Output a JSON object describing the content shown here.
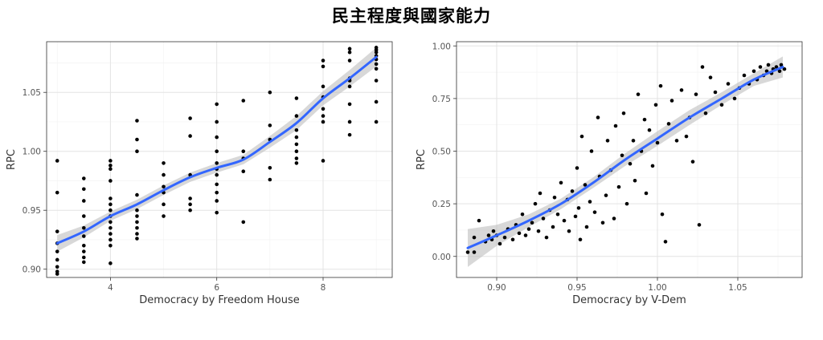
{
  "page": {
    "title": "民主程度與國家能力"
  },
  "colors": {
    "smooth_line": "#3366FF",
    "ribbon": "#BEBEBE",
    "points": "#000000",
    "grid_major": "#E3E3E3",
    "grid_minor": "#F2F2F2",
    "border": "#333333"
  },
  "chart_data": [
    {
      "type": "scatter",
      "title": "",
      "xlabel": "Democracy by Freedom House",
      "ylabel": "RPC",
      "xlim": [
        2.8,
        9.3
      ],
      "ylim": [
        0.893,
        1.093
      ],
      "xticks": [
        4,
        6,
        8
      ],
      "yticks": [
        0.9,
        0.95,
        1.0,
        1.05
      ],
      "grid": true,
      "series": [
        {
          "points": [
            [
              3,
              0.992
            ],
            [
              3,
              0.965
            ],
            [
              3,
              0.932
            ],
            [
              3,
              0.922
            ],
            [
              3,
              0.915
            ],
            [
              3,
              0.908
            ],
            [
              3,
              0.902
            ],
            [
              3,
              0.898
            ],
            [
              3,
              0.896
            ],
            [
              3.5,
              0.977
            ],
            [
              3.5,
              0.968
            ],
            [
              3.5,
              0.958
            ],
            [
              3.5,
              0.945
            ],
            [
              3.5,
              0.935
            ],
            [
              3.5,
              0.928
            ],
            [
              3.5,
              0.92
            ],
            [
              3.5,
              0.915
            ],
            [
              3.5,
              0.91
            ],
            [
              3.5,
              0.906
            ],
            [
              4,
              0.992
            ],
            [
              4,
              0.988
            ],
            [
              4,
              0.985
            ],
            [
              4,
              0.975
            ],
            [
              4,
              0.96
            ],
            [
              4,
              0.955
            ],
            [
              4,
              0.95
            ],
            [
              4,
              0.945
            ],
            [
              4,
              0.94
            ],
            [
              4,
              0.935
            ],
            [
              4,
              0.93
            ],
            [
              4,
              0.925
            ],
            [
              4,
              0.92
            ],
            [
              4,
              0.905
            ],
            [
              4.5,
              1.026
            ],
            [
              4.5,
              1.01
            ],
            [
              4.5,
              1.0
            ],
            [
              4.5,
              0.963
            ],
            [
              4.5,
              0.95
            ],
            [
              4.5,
              0.945
            ],
            [
              4.5,
              0.94
            ],
            [
              4.5,
              0.935
            ],
            [
              4.5,
              0.93
            ],
            [
              4.5,
              0.926
            ],
            [
              5,
              0.99
            ],
            [
              5,
              0.98
            ],
            [
              5,
              0.97
            ],
            [
              5,
              0.965
            ],
            [
              5,
              0.955
            ],
            [
              5,
              0.945
            ],
            [
              5.5,
              1.028
            ],
            [
              5.5,
              1.013
            ],
            [
              5.5,
              0.98
            ],
            [
              5.5,
              0.96
            ],
            [
              5.5,
              0.955
            ],
            [
              5.5,
              0.95
            ],
            [
              6,
              1.04
            ],
            [
              6,
              1.025
            ],
            [
              6,
              1.012
            ],
            [
              6,
              1.0
            ],
            [
              6,
              0.99
            ],
            [
              6,
              0.985
            ],
            [
              6,
              0.98
            ],
            [
              6,
              0.972
            ],
            [
              6,
              0.965
            ],
            [
              6,
              0.958
            ],
            [
              6,
              0.948
            ],
            [
              6.5,
              1.043
            ],
            [
              6.5,
              1.0
            ],
            [
              6.5,
              0.994
            ],
            [
              6.5,
              0.983
            ],
            [
              6.5,
              0.94
            ],
            [
              7,
              1.05
            ],
            [
              7,
              1.022
            ],
            [
              7,
              1.01
            ],
            [
              7,
              0.986
            ],
            [
              7,
              0.976
            ],
            [
              7.5,
              1.045
            ],
            [
              7.5,
              1.03
            ],
            [
              7.5,
              1.018
            ],
            [
              7.5,
              1.012
            ],
            [
              7.5,
              1.006
            ],
            [
              7.5,
              1.0
            ],
            [
              7.5,
              0.994
            ],
            [
              7.5,
              0.99
            ],
            [
              8,
              1.077
            ],
            [
              8,
              1.072
            ],
            [
              8,
              1.055
            ],
            [
              8,
              1.046
            ],
            [
              8,
              1.036
            ],
            [
              8,
              1.03
            ],
            [
              8,
              1.025
            ],
            [
              8,
              0.992
            ],
            [
              8.5,
              1.087
            ],
            [
              8.5,
              1.084
            ],
            [
              8.5,
              1.077
            ],
            [
              8.5,
              1.062
            ],
            [
              8.5,
              1.06
            ],
            [
              8.5,
              1.055
            ],
            [
              8.5,
              1.04
            ],
            [
              8.5,
              1.025
            ],
            [
              8.5,
              1.014
            ],
            [
              9,
              1.088
            ],
            [
              9,
              1.086
            ],
            [
              9,
              1.084
            ],
            [
              9,
              1.081
            ],
            [
              9,
              1.078
            ],
            [
              9,
              1.074
            ],
            [
              9,
              1.07
            ],
            [
              9,
              1.06
            ],
            [
              9,
              1.042
            ],
            [
              9,
              1.025
            ]
          ],
          "smooth": [
            [
              3,
              0.922
            ],
            [
              3.5,
              0.932
            ],
            [
              4,
              0.945
            ],
            [
              4.5,
              0.955
            ],
            [
              5,
              0.967
            ],
            [
              5.5,
              0.978
            ],
            [
              6,
              0.986
            ],
            [
              6.5,
              0.993
            ],
            [
              7,
              1.008
            ],
            [
              7.5,
              1.024
            ],
            [
              8,
              1.045
            ],
            [
              8.5,
              1.062
            ],
            [
              9,
              1.08
            ]
          ],
          "band": [
            0.007,
            0.005,
            0.004,
            0.004,
            0.004,
            0.004,
            0.004,
            0.004,
            0.005,
            0.006,
            0.006,
            0.007,
            0.008
          ]
        }
      ]
    },
    {
      "type": "scatter",
      "title": "",
      "xlabel": "Democracy by V-Dem",
      "ylabel": "RPC",
      "xlim": [
        0.875,
        1.09
      ],
      "ylim": [
        -0.1,
        1.02
      ],
      "xticks": [
        0.9,
        0.95,
        1.0,
        1.05
      ],
      "yticks": [
        0.0,
        0.25,
        0.5,
        0.75,
        1.0
      ],
      "grid": true,
      "series": [
        {
          "points": [
            [
              0.882,
              0.02
            ],
            [
              0.886,
              0.02
            ],
            [
              0.886,
              0.09
            ],
            [
              0.889,
              0.17
            ],
            [
              0.893,
              0.07
            ],
            [
              0.895,
              0.1
            ],
            [
              0.897,
              0.08
            ],
            [
              0.898,
              0.12
            ],
            [
              0.9,
              0.1
            ],
            [
              0.902,
              0.06
            ],
            [
              0.905,
              0.09
            ],
            [
              0.907,
              0.13
            ],
            [
              0.91,
              0.08
            ],
            [
              0.912,
              0.15
            ],
            [
              0.914,
              0.11
            ],
            [
              0.916,
              0.2
            ],
            [
              0.918,
              0.1
            ],
            [
              0.92,
              0.13
            ],
            [
              0.922,
              0.16
            ],
            [
              0.924,
              0.25
            ],
            [
              0.926,
              0.12
            ],
            [
              0.927,
              0.3
            ],
            [
              0.929,
              0.18
            ],
            [
              0.931,
              0.09
            ],
            [
              0.933,
              0.22
            ],
            [
              0.935,
              0.14
            ],
            [
              0.936,
              0.28
            ],
            [
              0.938,
              0.2
            ],
            [
              0.94,
              0.35
            ],
            [
              0.942,
              0.17
            ],
            [
              0.944,
              0.27
            ],
            [
              0.945,
              0.12
            ],
            [
              0.947,
              0.31
            ],
            [
              0.949,
              0.19
            ],
            [
              0.95,
              0.42
            ],
            [
              0.951,
              0.23
            ],
            [
              0.952,
              0.08
            ],
            [
              0.953,
              0.57
            ],
            [
              0.955,
              0.34
            ],
            [
              0.956,
              0.14
            ],
            [
              0.958,
              0.26
            ],
            [
              0.959,
              0.5
            ],
            [
              0.961,
              0.21
            ],
            [
              0.963,
              0.66
            ],
            [
              0.964,
              0.38
            ],
            [
              0.966,
              0.16
            ],
            [
              0.968,
              0.29
            ],
            [
              0.969,
              0.55
            ],
            [
              0.971,
              0.41
            ],
            [
              0.973,
              0.18
            ],
            [
              0.974,
              0.62
            ],
            [
              0.976,
              0.33
            ],
            [
              0.978,
              0.48
            ],
            [
              0.979,
              0.68
            ],
            [
              0.981,
              0.25
            ],
            [
              0.983,
              0.44
            ],
            [
              0.985,
              0.55
            ],
            [
              0.986,
              0.36
            ],
            [
              0.988,
              0.77
            ],
            [
              0.99,
              0.5
            ],
            [
              0.992,
              0.65
            ],
            [
              0.993,
              0.3
            ],
            [
              0.995,
              0.6
            ],
            [
              0.997,
              0.43
            ],
            [
              0.999,
              0.72
            ],
            [
              1.0,
              0.54
            ],
            [
              1.002,
              0.81
            ],
            [
              1.003,
              0.2
            ],
            [
              1.005,
              0.07
            ],
            [
              1.007,
              0.63
            ],
            [
              1.009,
              0.74
            ],
            [
              1.012,
              0.55
            ],
            [
              1.015,
              0.79
            ],
            [
              1.018,
              0.57
            ],
            [
              1.02,
              0.66
            ],
            [
              1.022,
              0.45
            ],
            [
              1.024,
              0.77
            ],
            [
              1.026,
              0.15
            ],
            [
              1.028,
              0.9
            ],
            [
              1.03,
              0.68
            ],
            [
              1.033,
              0.85
            ],
            [
              1.036,
              0.78
            ],
            [
              1.04,
              0.72
            ],
            [
              1.044,
              0.82
            ],
            [
              1.048,
              0.75
            ],
            [
              1.051,
              0.8
            ],
            [
              1.054,
              0.86
            ],
            [
              1.057,
              0.82
            ],
            [
              1.06,
              0.88
            ],
            [
              1.062,
              0.84
            ],
            [
              1.064,
              0.9
            ],
            [
              1.066,
              0.86
            ],
            [
              1.068,
              0.88
            ],
            [
              1.069,
              0.91
            ],
            [
              1.071,
              0.87
            ],
            [
              1.072,
              0.89
            ],
            [
              1.074,
              0.9
            ],
            [
              1.076,
              0.88
            ],
            [
              1.077,
              0.91
            ],
            [
              1.079,
              0.89
            ]
          ],
          "smooth": [
            [
              0.882,
              0.04
            ],
            [
              0.9,
              0.1
            ],
            [
              0.92,
              0.17
            ],
            [
              0.94,
              0.25
            ],
            [
              0.96,
              0.35
            ],
            [
              0.98,
              0.46
            ],
            [
              1.0,
              0.56
            ],
            [
              1.02,
              0.66
            ],
            [
              1.04,
              0.75
            ],
            [
              1.06,
              0.84
            ],
            [
              1.078,
              0.9
            ]
          ],
          "band": [
            0.09,
            0.05,
            0.03,
            0.025,
            0.025,
            0.03,
            0.035,
            0.035,
            0.03,
            0.03,
            0.05
          ]
        }
      ]
    }
  ]
}
